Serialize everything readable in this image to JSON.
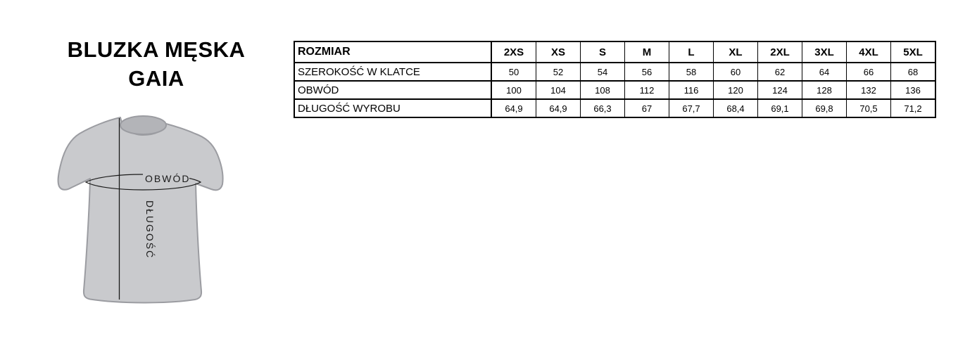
{
  "title": {
    "line1": "BLUZKA MĘSKA",
    "line2": "GAIA"
  },
  "diagram": {
    "obwod_label": "OBWÓD",
    "dlugosc_label": "DŁUGOŚĆ",
    "shirt_fill": "#c9cacd",
    "collar_fill": "#b3b4b8",
    "outline_color": "#9b9ca1",
    "measure_line_color": "#1a1a1a"
  },
  "size_table": {
    "header": {
      "label": "ROZMIAR",
      "sizes": [
        "2XS",
        "XS",
        "S",
        "M",
        "L",
        "XL",
        "2XL",
        "3XL",
        "4XL",
        "5XL"
      ]
    },
    "rows": [
      {
        "label": "SZEROKOŚĆ W KLATCE",
        "values": [
          "50",
          "52",
          "54",
          "56",
          "58",
          "60",
          "62",
          "64",
          "66",
          "68"
        ]
      },
      {
        "label": "OBWÓD",
        "values": [
          "100",
          "104",
          "108",
          "112",
          "116",
          "120",
          "124",
          "128",
          "132",
          "136"
        ]
      },
      {
        "label": "DŁUGOŚĆ WYROBU",
        "values": [
          "64,9",
          "64,9",
          "66,3",
          "67",
          "67,7",
          "68,4",
          "69,1",
          "69,8",
          "70,5",
          "71,2"
        ]
      }
    ]
  }
}
